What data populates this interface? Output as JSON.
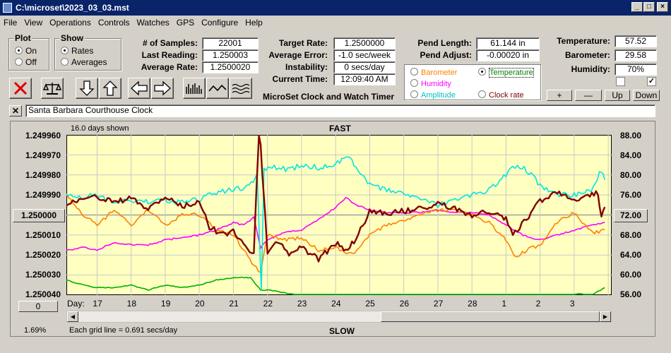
{
  "window": {
    "title": "C:\\microset\\2023_03_03.mst"
  },
  "menu": [
    "File",
    "View",
    "Operations",
    "Controls",
    "Watches",
    "GPS",
    "Configure",
    "Help"
  ],
  "plot_group": {
    "label": "Plot",
    "options": [
      "On",
      "Off"
    ],
    "selected": "On"
  },
  "show_group": {
    "label": "Show",
    "options": [
      "Rates",
      "Averages"
    ],
    "selected": "Rates"
  },
  "stats": {
    "samples_label": "# of Samples:",
    "samples": "22001",
    "last_reading_label": "Last Reading:",
    "last_reading": "1.250003",
    "average_rate_label": "Average Rate:",
    "average_rate": "1.2500020",
    "target_rate_label": "Target Rate:",
    "target_rate": "1.2500000",
    "average_error_label": "Average Error:",
    "average_error": "-1.0 sec/week",
    "instability_label": "Instability:",
    "instability": "0 secs/day",
    "current_time_label": "Current Time:",
    "current_time": "12:09:40 AM",
    "pend_length_label": "Pend Length:",
    "pend_length": "61.144 in",
    "pend_adjust_label": "Pend Adjust:",
    "pend_adjust": "-0.00020 in",
    "temperature_label": "Temperature:",
    "temperature": "57.52",
    "barometer_label": "Barometer:",
    "barometer": "29.58",
    "humidity_label": "Humidity:",
    "humidity": "70%"
  },
  "app_subtitle": "MicroSet Clock and Watch Timer",
  "sensor_options": [
    {
      "label": "Barometer",
      "color": "#ff8000",
      "selected": false
    },
    {
      "label": "Temperature",
      "color": "#008000",
      "selected": true
    },
    {
      "label": "Humidity",
      "color": "#ff00ff",
      "selected": false
    },
    {
      "label": "Amplitude",
      "color": "#00c0c0",
      "selected": false
    },
    {
      "label": "Clock rate",
      "color": "#800000",
      "selected": false
    }
  ],
  "right_buttons": {
    "plus": "+",
    "minus": "—",
    "up": "Up",
    "down": "Down"
  },
  "checkboxes": [
    {
      "checked": false
    },
    {
      "checked": true
    }
  ],
  "clock_name": "Santa Barbara Courthouse Clock",
  "chart_header": {
    "days_shown": "16.0 days shown",
    "top": "FAST",
    "bottom": "SLOW",
    "grid_note": "Each grid line = 0.691 secs/day",
    "percent": "1.69%"
  },
  "center_button_left": "1.250000",
  "center_button_right": "72.00",
  "zero_button": "0",
  "icons": [
    "close-x-icon",
    "balance-scale-icon",
    "arrow-down-icon",
    "arrow-up-icon",
    "arrow-left-icon",
    "arrow-right-icon",
    "bar-chart-icon",
    "line-wave-icon",
    "multi-wave-icon"
  ],
  "chart_data": {
    "type": "line",
    "title": "",
    "xlabel": "Day:",
    "x_ticks": [
      "17",
      "18",
      "19",
      "20",
      "21",
      "22",
      "23",
      "24",
      "25",
      "26",
      "27",
      "28",
      "1",
      "2",
      "3"
    ],
    "y_left_ticks": [
      "1.249960",
      "1.249970",
      "1.249980",
      "1.249990",
      "1.250000",
      "1.250010",
      "1.250020",
      "1.250030",
      "1.250040"
    ],
    "y_right_ticks": [
      "88.00",
      "84.00",
      "80.00",
      "76.00",
      "72.00",
      "68.00",
      "64.00",
      "60.00",
      "56.00"
    ],
    "ylim_left": [
      1.24996,
      1.25004
    ],
    "ylim_right": [
      56,
      88
    ],
    "x_range": [
      16.1,
      32.1
    ],
    "series": [
      {
        "name": "Clock rate",
        "color": "#800000",
        "axis": "left",
        "x": [
          16.1,
          16.6,
          17.0,
          17.5,
          18.0,
          18.5,
          19.0,
          19.5,
          20.0,
          20.3,
          20.7,
          21.0,
          21.3,
          21.6,
          21.75,
          21.85,
          22.0,
          22.3,
          22.7,
          23.0,
          23.5,
          24.0,
          24.3,
          24.6,
          25.0,
          25.5,
          26.0,
          26.5,
          27.0,
          27.5,
          28.0,
          28.5,
          29.0,
          29.2,
          29.6,
          30.0,
          30.5,
          31.0,
          31.4,
          31.7,
          31.8,
          31.9
        ],
        "y": [
          1.249994,
          1.249992,
          1.249991,
          1.249993,
          1.249992,
          1.249997,
          1.249991,
          1.249996,
          1.249993,
          1.250006,
          1.25001,
          1.250008,
          1.250014,
          1.25002,
          1.249952,
          1.24998,
          1.250018,
          1.250014,
          1.25002,
          1.250016,
          1.250022,
          1.250014,
          1.250018,
          1.250012,
          1.249998,
          1.249999,
          1.249998,
          1.249997,
          1.249994,
          1.249997,
          1.25,
          1.249998,
          1.250002,
          1.25001,
          1.250002,
          1.249993,
          1.249988,
          1.249992,
          1.249991,
          1.249989,
          1.250002,
          1.249996
        ]
      },
      {
        "name": "Barometer",
        "color": "#ff8000",
        "axis": "right",
        "x": [
          16.1,
          16.6,
          17.0,
          17.5,
          18.0,
          18.5,
          19.0,
          19.5,
          20.0,
          20.5,
          21.0,
          21.3,
          21.6,
          21.8,
          22.0,
          22.5,
          23.0,
          23.5,
          24.0,
          24.5,
          25.0,
          25.5,
          26.0,
          26.5,
          27.0,
          27.5,
          28.0,
          28.5,
          29.0,
          29.3,
          29.6,
          30.0,
          30.5,
          31.0,
          31.3,
          31.6,
          31.9
        ],
        "y": [
          76.0,
          72.0,
          70.0,
          73.0,
          70.0,
          73.0,
          70.0,
          72.0,
          72.0,
          69.0,
          68.0,
          65.0,
          62.0,
          60.5,
          68.0,
          67.0,
          67.5,
          65.0,
          65.5,
          64.0,
          68.0,
          70.0,
          71.0,
          72.0,
          73.0,
          73.0,
          72.0,
          70.5,
          67.0,
          63.5,
          65.0,
          66.0,
          70.5,
          72.5,
          70.0,
          68.5,
          69.0
        ]
      },
      {
        "name": "Amplitude",
        "color": "#00e5e5",
        "axis": "right",
        "x": [
          16.1,
          16.6,
          17.0,
          17.5,
          18.0,
          18.5,
          19.0,
          19.5,
          20.0,
          20.5,
          21.0,
          21.4,
          21.7,
          21.82,
          21.9,
          22.2,
          22.6,
          23.0,
          23.5,
          24.0,
          24.3,
          24.6,
          25.0,
          25.5,
          26.0,
          26.5,
          27.0,
          27.5,
          28.0,
          28.5,
          29.0,
          29.2,
          29.6,
          30.0,
          30.5,
          31.0,
          31.5,
          31.8,
          31.9
        ],
        "y": [
          76.0,
          75.5,
          76.0,
          74.5,
          75.0,
          74.5,
          75.0,
          74.5,
          75.0,
          76.5,
          77.0,
          77.5,
          80.0,
          57.0,
          81.0,
          81.5,
          81.0,
          82.0,
          81.5,
          82.0,
          84.0,
          81.5,
          78.0,
          77.0,
          76.5,
          75.0,
          74.0,
          75.0,
          76.0,
          77.0,
          80.0,
          82.0,
          81.0,
          78.0,
          76.0,
          76.0,
          77.0,
          81.0,
          79.0
        ]
      },
      {
        "name": "Humidity",
        "color": "#ff00ff",
        "axis": "right",
        "x": [
          16.1,
          16.6,
          17.0,
          17.5,
          18.0,
          18.5,
          19.0,
          19.5,
          20.0,
          20.5,
          21.0,
          21.3,
          21.6,
          21.8,
          22.0,
          22.5,
          23.0,
          23.5,
          24.0,
          24.3,
          24.6,
          25.0,
          25.5,
          26.0,
          26.5,
          27.0,
          27.5,
          28.0,
          28.5,
          29.0,
          29.5,
          30.0,
          30.5,
          31.0,
          31.5,
          31.9
        ],
        "y": [
          65.0,
          65.5,
          65.0,
          66.5,
          66.0,
          66.0,
          67.0,
          67.5,
          68.0,
          69.0,
          70.5,
          70.0,
          71.5,
          65.5,
          67.0,
          68.5,
          69.0,
          71.0,
          73.5,
          75.5,
          74.0,
          73.0,
          72.5,
          72.5,
          72.5,
          73.0,
          72.5,
          72.5,
          72.0,
          70.0,
          68.0,
          67.0,
          68.0,
          69.0,
          70.0,
          70.5
        ]
      },
      {
        "name": "Temperature",
        "color": "#00b000",
        "axis": "right",
        "x": [
          16.1,
          16.6,
          17.0,
          17.5,
          18.0,
          18.5,
          19.0,
          19.5,
          20.0,
          20.5,
          21.0,
          21.5,
          21.8,
          22.1,
          22.4,
          23.0,
          24.0,
          25.0,
          26.0,
          27.0,
          28.0,
          29.0,
          30.0,
          30.8,
          31.2,
          31.5,
          31.9
        ],
        "y": [
          59.0,
          58.0,
          57.5,
          57.5,
          58.0,
          57.0,
          58.0,
          57.5,
          58.0,
          59.0,
          59.5,
          59.5,
          57.0,
          57.0,
          56.5,
          56.0,
          56.0,
          56.0,
          56.0,
          56.0,
          56.0,
          56.0,
          56.0,
          56.0,
          56.3,
          56.0,
          57.5
        ]
      }
    ]
  }
}
